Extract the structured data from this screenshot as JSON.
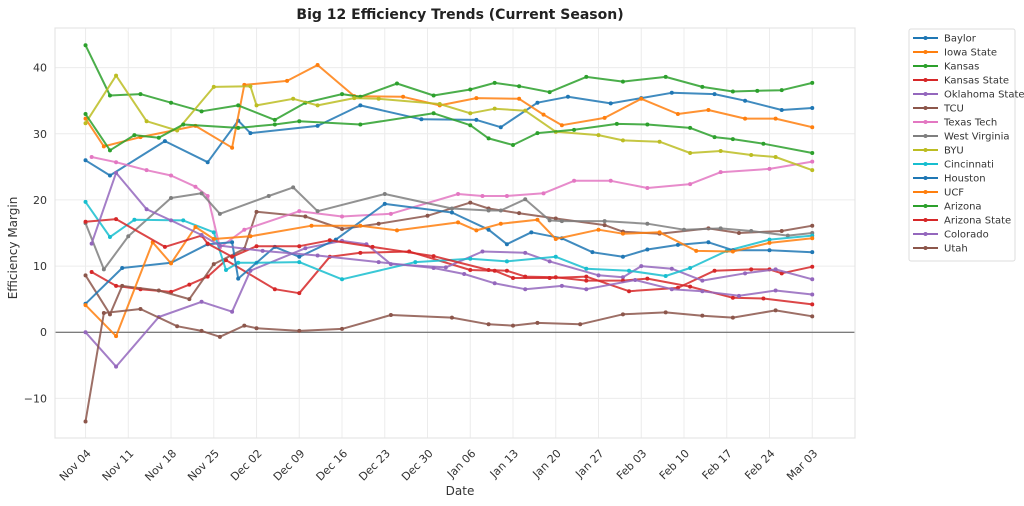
{
  "chart_data": {
    "type": "line",
    "title": "Big 12 Efficiency Trends (Current Season)",
    "xlabel": "Date",
    "ylabel": "Efficiency Margin",
    "x_start_date": "Nov 04",
    "x_unit": "days since Nov 04",
    "xlim_days": [
      -5,
      126
    ],
    "ylim": [
      -16,
      46
    ],
    "x_ticks": [
      {
        "day": 0,
        "label": "Nov 04"
      },
      {
        "day": 7,
        "label": "Nov 11"
      },
      {
        "day": 14,
        "label": "Nov 18"
      },
      {
        "day": 21,
        "label": "Nov 25"
      },
      {
        "day": 28,
        "label": "Dec 02"
      },
      {
        "day": 35,
        "label": "Dec 09"
      },
      {
        "day": 42,
        "label": "Dec 16"
      },
      {
        "day": 49,
        "label": "Dec 23"
      },
      {
        "day": 56,
        "label": "Dec 30"
      },
      {
        "day": 63,
        "label": "Jan 06"
      },
      {
        "day": 70,
        "label": "Jan 13"
      },
      {
        "day": 77,
        "label": "Jan 20"
      },
      {
        "day": 84,
        "label": "Jan 27"
      },
      {
        "day": 91,
        "label": "Feb 03"
      },
      {
        "day": 98,
        "label": "Feb 10"
      },
      {
        "day": 105,
        "label": "Feb 17"
      },
      {
        "day": 112,
        "label": "Feb 24"
      },
      {
        "day": 119,
        "label": "Mar 03"
      }
    ],
    "y_ticks": [
      -10,
      0,
      10,
      20,
      30,
      40
    ],
    "grid": true,
    "zero_line": true,
    "legend_position": "outside-right",
    "series": [
      {
        "name": "Baylor",
        "color": "#1f77b4",
        "x": [
          0,
          4,
          13,
          20,
          25,
          27,
          38,
          45,
          55,
          64,
          68,
          74,
          79,
          86,
          91,
          96,
          103,
          108,
          114,
          119
        ],
        "y": [
          26.0,
          23.7,
          28.9,
          25.7,
          32.0,
          30.1,
          31.2,
          34.3,
          32.2,
          32.1,
          31.0,
          34.7,
          35.6,
          34.6,
          35.4,
          36.2,
          36.0,
          35.0,
          33.6,
          33.9
        ]
      },
      {
        "name": "Iowa State",
        "color": "#ff7f0e",
        "x": [
          0,
          3,
          9,
          18,
          24,
          26,
          33,
          38,
          44,
          52,
          58,
          64,
          71,
          75,
          78,
          85,
          91,
          97,
          102,
          108,
          113,
          119
        ],
        "y": [
          32.3,
          28.1,
          29.5,
          31.2,
          27.9,
          37.4,
          38.0,
          40.4,
          35.7,
          35.6,
          34.3,
          35.4,
          35.3,
          32.9,
          31.3,
          32.4,
          35.3,
          33.0,
          33.6,
          32.3,
          32.3,
          31.0
        ]
      },
      {
        "name": "Kansas",
        "color": "#2ca02c",
        "x": [
          0,
          4,
          9,
          14,
          19,
          25,
          31,
          36,
          42,
          45,
          51,
          57,
          63,
          67,
          71,
          76,
          82,
          88,
          95,
          101,
          106,
          110,
          114,
          119
        ],
        "y": [
          43.4,
          35.8,
          36.0,
          34.7,
          33.4,
          34.3,
          32.1,
          34.7,
          36.0,
          35.6,
          37.6,
          35.8,
          36.7,
          37.7,
          37.2,
          36.3,
          38.6,
          37.9,
          38.6,
          37.1,
          36.4,
          36.5,
          36.6,
          37.7
        ]
      },
      {
        "name": "Kansas State",
        "color": "#d62728",
        "x": [
          1,
          5,
          9,
          14,
          17,
          20,
          23,
          31,
          35,
          40,
          45,
          53,
          63,
          67,
          70,
          76,
          82,
          89,
          97,
          103,
          109,
          112,
          114,
          119
        ],
        "y": [
          9.1,
          7.0,
          6.5,
          6.1,
          7.2,
          8.4,
          10.9,
          6.5,
          5.9,
          11.4,
          12.0,
          12.2,
          9.4,
          9.3,
          8.2,
          8.2,
          8.4,
          6.2,
          6.7,
          9.3,
          9.5,
          9.5,
          8.9,
          9.9
        ]
      },
      {
        "name": "Oklahoma State",
        "color": "#9467bd",
        "x": [
          0,
          5,
          12,
          19,
          24,
          27,
          36,
          42,
          46,
          50,
          59,
          65,
          72,
          76,
          84,
          88,
          91,
          96,
          101,
          108,
          113,
          119
        ],
        "y": [
          0.0,
          -5.2,
          2.3,
          4.6,
          3.1,
          9.3,
          12.7,
          13.8,
          13.3,
          10.3,
          9.8,
          12.2,
          12.0,
          10.7,
          8.6,
          8.3,
          10.0,
          9.6,
          7.8,
          8.9,
          9.5,
          8.0
        ]
      },
      {
        "name": "TCU",
        "color": "#8c564b",
        "x": [
          0,
          4,
          6,
          12,
          17,
          21,
          26,
          28,
          36,
          42,
          48,
          56,
          63,
          66,
          71,
          77,
          85,
          88,
          94,
          102,
          107,
          114,
          119
        ],
        "y": [
          8.6,
          2.7,
          7.0,
          6.3,
          5.0,
          10.3,
          12.6,
          18.2,
          17.5,
          15.6,
          16.4,
          17.6,
          19.6,
          18.7,
          18.0,
          17.2,
          16.2,
          15.2,
          14.9,
          15.7,
          15.0,
          15.3,
          16.1
        ]
      },
      {
        "name": "Texas Tech",
        "color": "#e377c2",
        "x": [
          1,
          5,
          10,
          14,
          18,
          20,
          22,
          26,
          35,
          42,
          50,
          61,
          65,
          69,
          75,
          80,
          86,
          92,
          99,
          104,
          112,
          119
        ],
        "y": [
          26.5,
          25.7,
          24.5,
          23.7,
          22.0,
          20.6,
          12.8,
          15.5,
          18.3,
          17.5,
          17.9,
          20.9,
          20.6,
          20.6,
          21.0,
          22.9,
          22.9,
          21.8,
          22.4,
          24.2,
          24.7,
          25.8
        ]
      },
      {
        "name": "West Virginia",
        "color": "#7f7f7f",
        "x": [
          0,
          3,
          7,
          14,
          19,
          22,
          30,
          34,
          38,
          49,
          60,
          66,
          68,
          72,
          76,
          78,
          85,
          92,
          98,
          104,
          109,
          115,
          119
        ],
        "y": [
          16.5,
          9.5,
          14.5,
          20.3,
          21.0,
          17.9,
          20.6,
          21.9,
          18.3,
          20.9,
          18.7,
          18.4,
          18.4,
          20.1,
          16.9,
          16.8,
          16.8,
          16.4,
          15.5,
          15.7,
          15.3,
          14.6,
          15.0
        ]
      },
      {
        "name": "BYU",
        "color": "#bcbd22",
        "x": [
          0,
          5,
          10,
          15,
          21,
          27,
          28,
          34,
          38,
          44,
          48,
          58,
          63,
          67,
          72,
          77,
          84,
          88,
          94,
          99,
          104,
          109,
          113,
          119
        ],
        "y": [
          31.6,
          38.8,
          31.9,
          30.5,
          37.1,
          37.2,
          34.3,
          35.3,
          34.3,
          35.4,
          35.3,
          34.5,
          33.1,
          33.8,
          33.5,
          30.3,
          29.8,
          29.0,
          28.8,
          27.1,
          27.4,
          26.8,
          26.5,
          24.5
        ]
      },
      {
        "name": "Cincinnati",
        "color": "#17becf",
        "x": [
          0,
          4,
          8,
          16,
          21,
          23,
          25,
          28,
          35,
          42,
          54,
          63,
          69,
          77,
          82,
          89,
          95,
          99,
          105,
          112,
          119
        ],
        "y": [
          19.7,
          14.4,
          17.0,
          16.9,
          15.1,
          9.4,
          10.5,
          10.5,
          10.6,
          8.0,
          10.6,
          11.1,
          10.7,
          11.4,
          9.6,
          9.3,
          8.5,
          9.7,
          12.3,
          14.0,
          14.6
        ]
      },
      {
        "name": "Houston",
        "color": "#1f77b4",
        "x": [
          0,
          6,
          14,
          20,
          24,
          25,
          31,
          35,
          41,
          49,
          60,
          66,
          69,
          73,
          78,
          83,
          88,
          92,
          97,
          102,
          106,
          112,
          119
        ],
        "y": [
          4.3,
          9.7,
          10.5,
          13.3,
          13.6,
          8.1,
          12.9,
          11.4,
          14.0,
          19.4,
          18.1,
          15.5,
          13.3,
          15.1,
          14.2,
          12.1,
          11.4,
          12.5,
          13.2,
          13.6,
          12.4,
          12.4,
          12.1
        ]
      },
      {
        "name": "UCF",
        "color": "#ff7f0e",
        "x": [
          0,
          5,
          11,
          14,
          18,
          21,
          27,
          37,
          45,
          51,
          61,
          64,
          68,
          74,
          77,
          84,
          88,
          94,
          100,
          106,
          112,
          119
        ],
        "y": [
          4.1,
          -0.6,
          13.6,
          10.4,
          15.9,
          14.1,
          14.5,
          16.1,
          16.1,
          15.4,
          16.6,
          15.4,
          16.4,
          17.0,
          14.1,
          15.5,
          14.9,
          15.1,
          12.3,
          12.2,
          13.5,
          14.2
        ]
      },
      {
        "name": "Arizona",
        "color": "#2ca02c",
        "x": [
          0,
          4,
          8,
          12,
          16,
          25,
          31,
          35,
          45,
          57,
          63,
          66,
          70,
          74,
          80,
          87,
          92,
          99,
          103,
          106,
          111,
          119
        ],
        "y": [
          33.0,
          27.5,
          29.8,
          29.4,
          31.4,
          30.9,
          31.4,
          31.9,
          31.4,
          33.1,
          31.3,
          29.3,
          28.3,
          30.1,
          30.6,
          31.5,
          31.4,
          30.9,
          29.5,
          29.2,
          28.5,
          27.1
        ]
      },
      {
        "name": "Arizona State",
        "color": "#d62728",
        "x": [
          0,
          5,
          13,
          19,
          20,
          24,
          28,
          35,
          40,
          47,
          57,
          66,
          69,
          72,
          77,
          82,
          88,
          92,
          99,
          106,
          111,
          119
        ],
        "y": [
          16.7,
          17.1,
          12.9,
          14.6,
          13.4,
          11.4,
          13.0,
          13.0,
          13.9,
          12.9,
          11.5,
          9.4,
          9.3,
          8.4,
          8.3,
          7.8,
          7.8,
          8.1,
          6.9,
          5.2,
          5.1,
          4.2
        ]
      },
      {
        "name": "Colorado",
        "color": "#9467bd",
        "x": [
          1,
          5,
          10,
          14,
          19,
          22,
          29,
          38,
          48,
          57,
          62,
          67,
          72,
          78,
          82,
          90,
          96,
          101,
          107,
          113,
          119
        ],
        "y": [
          13.4,
          24.1,
          18.6,
          16.9,
          14.7,
          13.1,
          12.3,
          11.6,
          10.6,
          9.7,
          8.8,
          7.4,
          6.5,
          7.0,
          6.5,
          7.9,
          6.5,
          6.2,
          5.5,
          6.3,
          5.7
        ]
      },
      {
        "name": "Utah",
        "color": "#8c564b",
        "x": [
          0,
          3,
          9,
          15,
          19,
          22,
          26,
          28,
          35,
          42,
          50,
          60,
          66,
          70,
          74,
          81,
          88,
          95,
          101,
          106,
          113,
          119
        ],
        "y": [
          -13.5,
          2.9,
          3.5,
          0.9,
          0.2,
          -0.7,
          1.0,
          0.6,
          0.2,
          0.5,
          2.6,
          2.2,
          1.2,
          1.0,
          1.4,
          1.2,
          2.7,
          3.0,
          2.5,
          2.2,
          3.3,
          2.4
        ]
      }
    ]
  }
}
